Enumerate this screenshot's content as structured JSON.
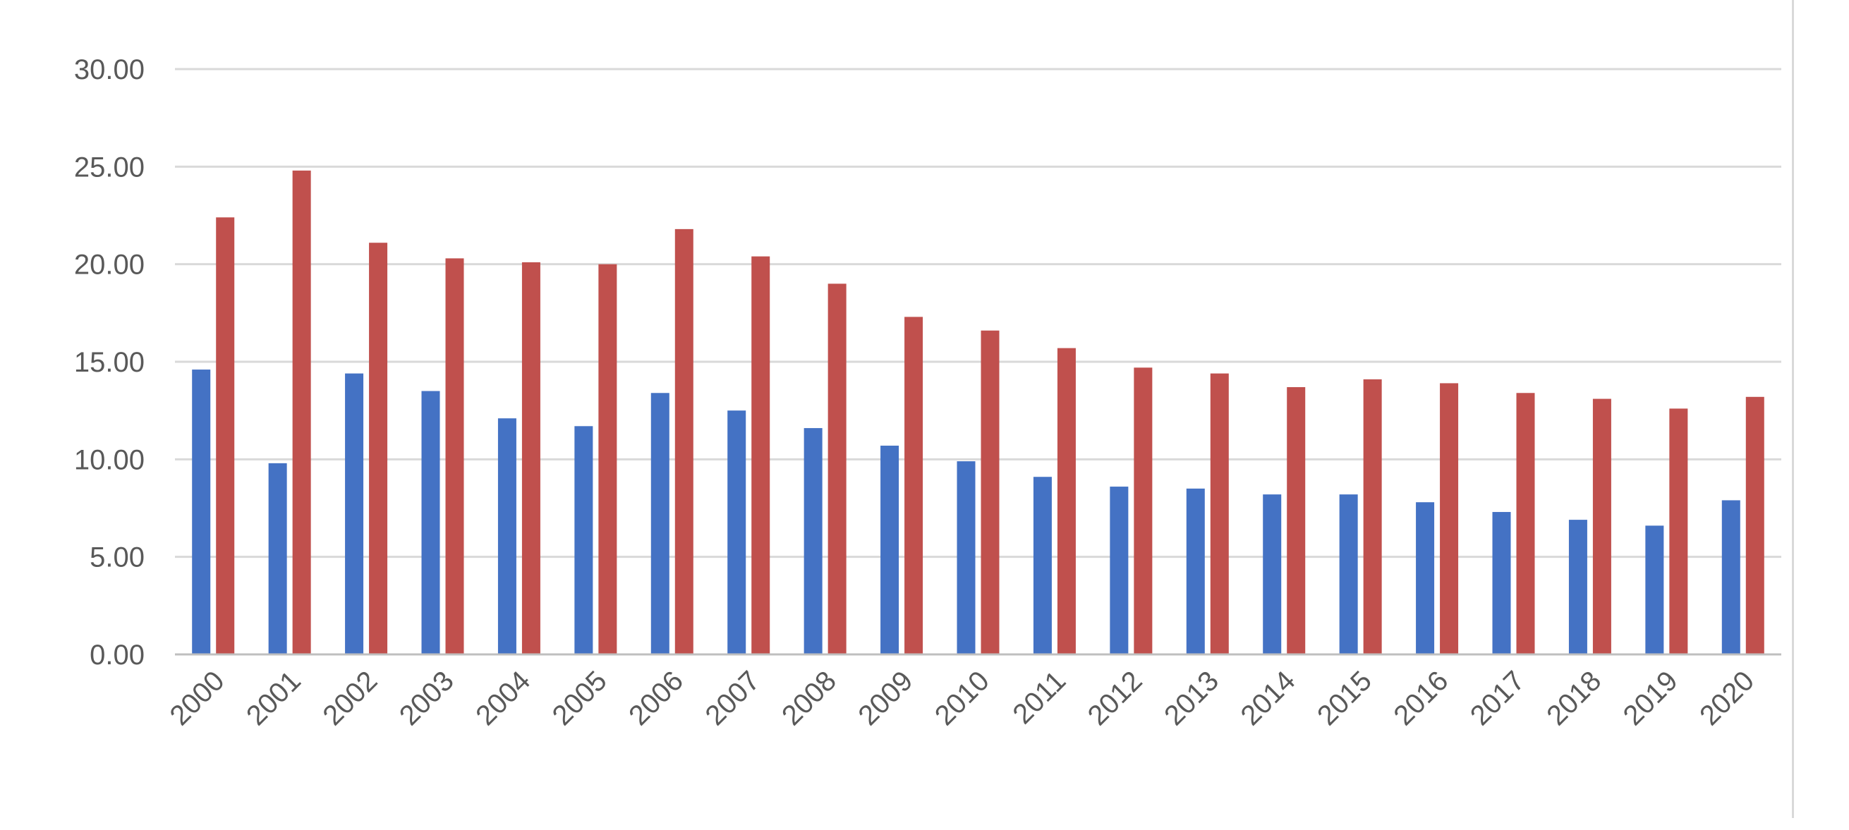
{
  "chart_data": {
    "type": "bar",
    "title": "",
    "xlabel": "",
    "ylabel": "",
    "ylim": [
      0,
      30
    ],
    "yticks": [
      "0.00",
      "5.00",
      "10.00",
      "15.00",
      "20.00",
      "25.00",
      "30.00"
    ],
    "grid": true,
    "legend": "none",
    "categories": [
      "2000",
      "2001",
      "2002",
      "2003",
      "2004",
      "2005",
      "2006",
      "2007",
      "2008",
      "2009",
      "2010",
      "2011",
      "2012",
      "2013",
      "2014",
      "2015",
      "2016",
      "2017",
      "2018",
      "2019",
      "2020"
    ],
    "series": [
      {
        "color": "#4472c4",
        "values": [
          14.6,
          9.8,
          14.4,
          13.5,
          12.1,
          11.7,
          13.4,
          12.5,
          11.6,
          10.7,
          9.9,
          9.1,
          8.6,
          8.5,
          8.2,
          8.2,
          7.8,
          7.3,
          6.9,
          6.6,
          7.9
        ]
      },
      {
        "color": "#c0504d",
        "values": [
          22.4,
          24.8,
          21.1,
          20.3,
          20.1,
          20.0,
          21.8,
          20.4,
          19.0,
          17.3,
          16.6,
          15.7,
          14.7,
          14.4,
          13.7,
          14.1,
          13.9,
          13.4,
          13.1,
          12.6,
          13.2
        ]
      }
    ]
  }
}
